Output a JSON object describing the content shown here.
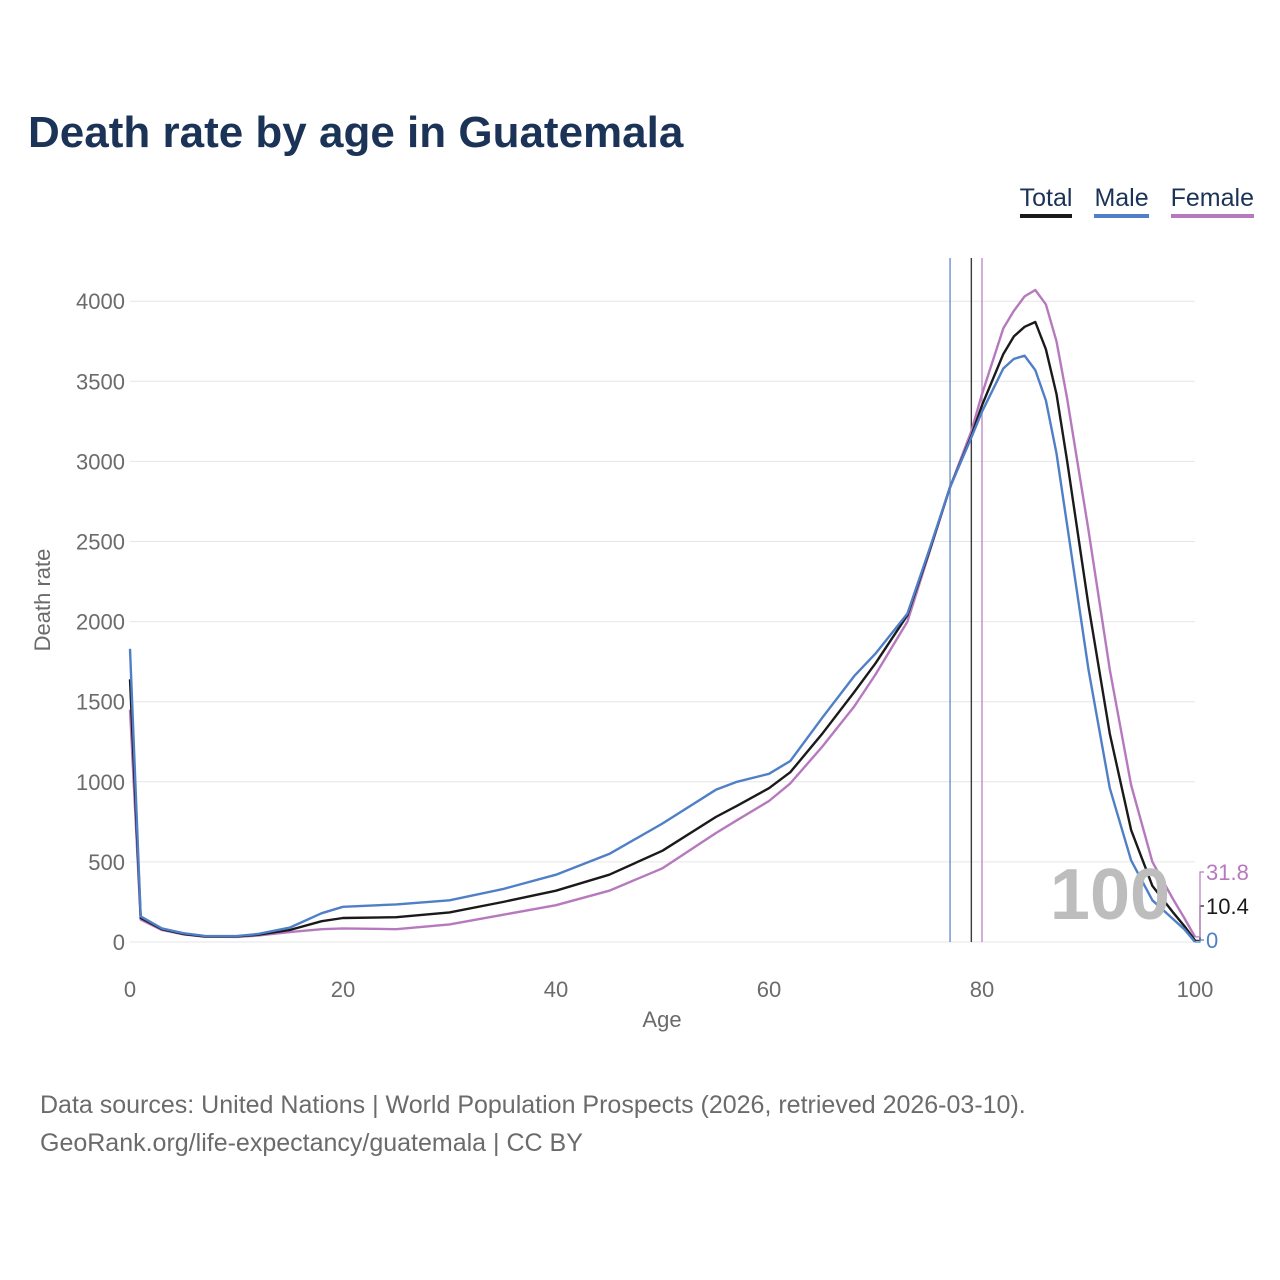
{
  "chart_data": {
    "type": "line",
    "title": "Death rate by age in Guatemala",
    "xlabel": "Age",
    "ylabel": "Death rate",
    "xlim": [
      0,
      100
    ],
    "ylim": [
      0,
      4200
    ],
    "x_ticks": [
      0,
      20,
      40,
      60,
      80,
      100
    ],
    "y_ticks": [
      0,
      500,
      1000,
      1500,
      2000,
      2500,
      3000,
      3500,
      4000
    ],
    "grid": true,
    "legend_position": "top-right",
    "hover_age": "100",
    "x": [
      0,
      1,
      3,
      5,
      7,
      10,
      12,
      15,
      18,
      20,
      25,
      30,
      35,
      40,
      45,
      50,
      55,
      57,
      60,
      62,
      65,
      68,
      70,
      73,
      75,
      77,
      79,
      80,
      82,
      83,
      84,
      85,
      86,
      87,
      88,
      90,
      92,
      94,
      96,
      98,
      99,
      100
    ],
    "series": [
      {
        "name": "Total",
        "color": "#1a1a1a",
        "end_label": "10.4",
        "values": [
          1640,
          150,
          80,
          50,
          35,
          35,
          45,
          75,
          130,
          150,
          155,
          185,
          250,
          320,
          420,
          570,
          780,
          850,
          960,
          1060,
          1300,
          1560,
          1740,
          2040,
          2430,
          2840,
          3160,
          3350,
          3670,
          3780,
          3840,
          3870,
          3700,
          3420,
          3000,
          2100,
          1300,
          700,
          350,
          180,
          100,
          10.4
        ]
      },
      {
        "name": "Male",
        "color": "#4f7fc6",
        "end_label": "0",
        "values": [
          1830,
          160,
          85,
          55,
          38,
          37,
          50,
          90,
          180,
          220,
          235,
          260,
          330,
          420,
          550,
          740,
          950,
          1000,
          1050,
          1130,
          1400,
          1660,
          1800,
          2050,
          2440,
          2840,
          3150,
          3310,
          3580,
          3640,
          3660,
          3570,
          3380,
          3050,
          2600,
          1700,
          960,
          510,
          260,
          140,
          80,
          0
        ]
      },
      {
        "name": "Female",
        "color": "#b779be",
        "end_label": "31.8",
        "values": [
          1450,
          140,
          75,
          48,
          33,
          32,
          40,
          62,
          80,
          85,
          80,
          110,
          170,
          230,
          320,
          460,
          680,
          760,
          880,
          990,
          1220,
          1470,
          1670,
          2000,
          2420,
          2840,
          3190,
          3420,
          3830,
          3940,
          4030,
          4070,
          3980,
          3750,
          3390,
          2570,
          1700,
          980,
          500,
          260,
          150,
          31.8
        ]
      }
    ],
    "reference_lines": [
      {
        "series": "Male",
        "age": 77.0
      },
      {
        "series": "Total",
        "age": 79.0
      },
      {
        "series": "Female",
        "age": 80.0
      }
    ],
    "source_line": "Data sources: United Nations | World Population Prospects (2026, retrieved 2026-03-10).",
    "credit_line": "GeoRank.org/life-expectancy/guatemala | CC BY"
  },
  "legend": {
    "total": "Total",
    "male": "Male",
    "female": "Female"
  }
}
